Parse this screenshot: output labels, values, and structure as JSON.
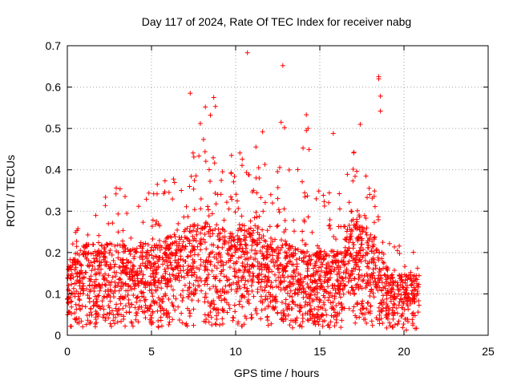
{
  "chart_data": {
    "type": "scatter",
    "title": "Day 117 of 2024, Rate Of TEC Index for receiver nabg",
    "xlabel": "GPS time / hours",
    "ylabel": "ROTI / TECUs",
    "xlim": [
      0,
      25
    ],
    "ylim": [
      0,
      0.7
    ],
    "xticks": [
      "0",
      "5",
      "10",
      "15",
      "20",
      "25"
    ],
    "yticks": [
      "0",
      "0.1",
      "0.2",
      "0.3",
      "0.4",
      "0.5",
      "0.6",
      "0.7"
    ],
    "grid": true,
    "marker": "plus",
    "marker_color": "#ff0000",
    "x_data_range": [
      0,
      20.9
    ],
    "hourly_profile": {
      "hours": [
        0,
        1,
        2,
        3,
        4,
        5,
        6,
        7,
        8,
        9,
        10,
        11,
        12,
        13,
        14,
        15,
        16,
        17,
        18,
        19,
        20,
        21
      ],
      "typical_max": [
        0.2,
        0.3,
        0.33,
        0.38,
        0.3,
        0.36,
        0.38,
        0.42,
        0.5,
        0.4,
        0.45,
        0.47,
        0.4,
        0.42,
        0.48,
        0.4,
        0.33,
        0.45,
        0.4,
        0.25,
        0.22,
        0.21
      ],
      "typical_level": [
        0.09,
        0.12,
        0.12,
        0.12,
        0.12,
        0.12,
        0.13,
        0.14,
        0.15,
        0.14,
        0.14,
        0.15,
        0.13,
        0.12,
        0.11,
        0.11,
        0.11,
        0.16,
        0.14,
        0.09,
        0.08,
        0.08
      ]
    },
    "outliers": [
      {
        "x": 10.7,
        "y": 0.683
      },
      {
        "x": 12.8,
        "y": 0.652
      },
      {
        "x": 18.5,
        "y": 0.625
      },
      {
        "x": 18.5,
        "y": 0.62
      },
      {
        "x": 7.3,
        "y": 0.585
      },
      {
        "x": 8.7,
        "y": 0.575
      },
      {
        "x": 18.6,
        "y": 0.578
      },
      {
        "x": 8.2,
        "y": 0.552
      },
      {
        "x": 8.8,
        "y": 0.553
      },
      {
        "x": 18.6,
        "y": 0.542
      },
      {
        "x": 8.5,
        "y": 0.532
      },
      {
        "x": 14.2,
        "y": 0.533
      },
      {
        "x": 7.9,
        "y": 0.512
      },
      {
        "x": 12.7,
        "y": 0.515
      },
      {
        "x": 17.4,
        "y": 0.51
      },
      {
        "x": 12.9,
        "y": 0.502
      },
      {
        "x": 14.3,
        "y": 0.5
      },
      {
        "x": 14.2,
        "y": 0.495
      },
      {
        "x": 11.6,
        "y": 0.492
      },
      {
        "x": 15.8,
        "y": 0.488
      }
    ]
  }
}
